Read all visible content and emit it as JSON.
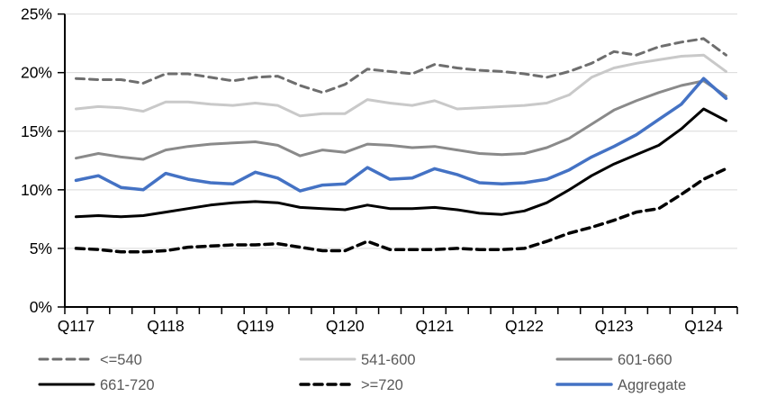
{
  "chart_data": {
    "type": "line",
    "title": "",
    "xlabel": "",
    "ylabel": "",
    "ylim": [
      0,
      25
    ],
    "ytick_step": 5,
    "ytick_labels": [
      "0%",
      "5%",
      "10%",
      "15%",
      "20%",
      "25%"
    ],
    "grid": "horizontal",
    "legend_position": "bottom",
    "x": [
      "Q117",
      "Q217",
      "Q317",
      "Q417",
      "Q118",
      "Q218",
      "Q318",
      "Q418",
      "Q119",
      "Q219",
      "Q319",
      "Q419",
      "Q120",
      "Q220",
      "Q320",
      "Q420",
      "Q121",
      "Q221",
      "Q321",
      "Q421",
      "Q122",
      "Q222",
      "Q322",
      "Q422",
      "Q123",
      "Q223",
      "Q323",
      "Q423",
      "Q124",
      "Q224"
    ],
    "x_axis_shown_labels": [
      "Q117",
      "Q118",
      "Q119",
      "Q120",
      "Q121",
      "Q122",
      "Q123",
      "Q124"
    ],
    "x_axis_shown_label_indices": [
      0,
      4,
      8,
      12,
      16,
      20,
      24,
      28
    ],
    "series": [
      {
        "name": "<=540",
        "color": "#6E6E6E",
        "line_style": "dashed",
        "stroke_width": 3,
        "values": [
          19.5,
          19.4,
          19.4,
          19.1,
          19.9,
          19.9,
          19.6,
          19.3,
          19.6,
          19.7,
          18.9,
          18.3,
          19.0,
          20.3,
          20.1,
          19.9,
          20.7,
          20.4,
          20.2,
          20.1,
          19.9,
          19.6,
          20.1,
          20.8,
          21.8,
          21.5,
          22.2,
          22.6,
          22.9,
          21.5
        ]
      },
      {
        "name": "541-600",
        "color": "#C9C9C9",
        "line_style": "solid",
        "stroke_width": 3,
        "values": [
          16.9,
          17.1,
          17.0,
          16.7,
          17.5,
          17.5,
          17.3,
          17.2,
          17.4,
          17.2,
          16.3,
          16.5,
          16.5,
          17.7,
          17.4,
          17.2,
          17.6,
          16.9,
          17.0,
          17.1,
          17.2,
          17.4,
          18.1,
          19.6,
          20.4,
          20.8,
          21.1,
          21.4,
          21.5,
          20.1
        ]
      },
      {
        "name": "601-660",
        "color": "#8A8A8A",
        "line_style": "solid",
        "stroke_width": 3,
        "values": [
          12.7,
          13.1,
          12.8,
          12.6,
          13.4,
          13.7,
          13.9,
          14.0,
          14.1,
          13.8,
          12.9,
          13.4,
          13.2,
          13.9,
          13.8,
          13.6,
          13.7,
          13.4,
          13.1,
          13.0,
          13.1,
          13.6,
          14.4,
          15.6,
          16.8,
          17.6,
          18.3,
          18.9,
          19.3,
          18.0
        ]
      },
      {
        "name": "661-720",
        "color": "#000000",
        "line_style": "solid",
        "stroke_width": 3,
        "values": [
          7.7,
          7.8,
          7.7,
          7.8,
          8.1,
          8.4,
          8.7,
          8.9,
          9.0,
          8.9,
          8.5,
          8.4,
          8.3,
          8.7,
          8.4,
          8.4,
          8.5,
          8.3,
          8.0,
          7.9,
          8.2,
          8.9,
          10.0,
          11.2,
          12.2,
          13.0,
          13.8,
          15.2,
          16.9,
          15.9
        ]
      },
      {
        "name": ">=720",
        "color": "#000000",
        "line_style": "dashed",
        "stroke_width": 3.5,
        "values": [
          5.0,
          4.9,
          4.7,
          4.7,
          4.8,
          5.1,
          5.2,
          5.3,
          5.3,
          5.4,
          5.1,
          4.8,
          4.8,
          5.6,
          4.9,
          4.9,
          4.9,
          5.0,
          4.9,
          4.9,
          5.0,
          5.6,
          6.3,
          6.8,
          7.4,
          8.1,
          8.4,
          9.6,
          10.9,
          11.8
        ]
      },
      {
        "name": "Aggregate",
        "color": "#4472C4",
        "line_style": "solid",
        "stroke_width": 3.5,
        "values": [
          10.8,
          11.2,
          10.2,
          10.0,
          11.4,
          10.9,
          10.6,
          10.5,
          11.5,
          11.0,
          9.9,
          10.4,
          10.5,
          11.9,
          10.9,
          11.0,
          11.8,
          11.3,
          10.6,
          10.5,
          10.6,
          10.9,
          11.7,
          12.8,
          13.7,
          14.7,
          16.0,
          17.3,
          19.5,
          17.8
        ]
      }
    ],
    "legend_rows": [
      [
        "<=540",
        "541-600",
        "601-660"
      ],
      [
        "661-720",
        ">=720",
        "Aggregate"
      ]
    ],
    "colors": {
      "gridline": "#D9D9D9",
      "axis": "#000000",
      "tick_label": "#000000",
      "legend_label": "#595959",
      "background": "#FFFFFF"
    }
  }
}
